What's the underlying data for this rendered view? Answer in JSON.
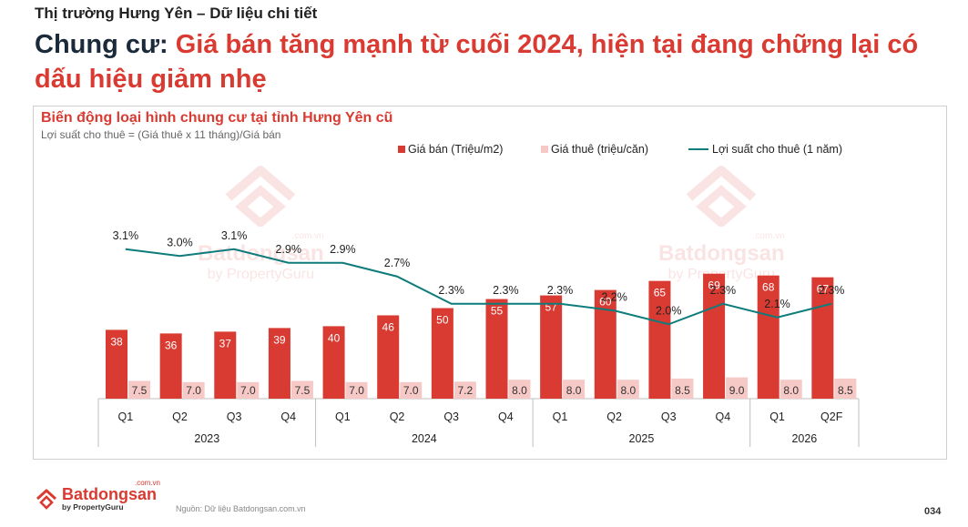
{
  "header": {
    "kicker": "Thị trường Hưng Yên – Dữ liệu chi tiết",
    "headline_lead": "Chung cư:",
    "headline_rest": " Giá bán tăng mạnh từ cuối 2024, hiện tại đang chững lại có dấu hiệu giảm nhẹ"
  },
  "colors": {
    "sale": "#d93a31",
    "rent": "#f6c9c6",
    "yield": "#0e7c7b",
    "accent": "#d93a31"
  },
  "chart_data": {
    "type": "bar",
    "title": "Biến động loại hình chung cư tại tỉnh Hưng Yên cũ",
    "subtitle": "Lợi suất cho thuê = (Giá thuê x 11 tháng)/Giá bán",
    "categories": [
      "Q1",
      "Q2",
      "Q3",
      "Q4",
      "Q1",
      "Q2",
      "Q3",
      "Q4",
      "Q1",
      "Q2",
      "Q3",
      "Q4",
      "Q1",
      "Q2F"
    ],
    "groups": [
      {
        "label": "2023",
        "count": 4
      },
      {
        "label": "2024",
        "count": 4
      },
      {
        "label": "2025",
        "count": 4
      },
      {
        "label": "2026",
        "count": 2
      }
    ],
    "series": [
      {
        "name": "Giá bán (Triệu/m2)",
        "type": "bar",
        "values": [
          38,
          36,
          37,
          39,
          40,
          46,
          50,
          55,
          57,
          60,
          65,
          69,
          68,
          67
        ],
        "labels": [
          "38",
          "36",
          "37",
          "39",
          "40",
          "46",
          "50",
          "55",
          "57",
          "60",
          "65",
          "69",
          "68",
          "67"
        ]
      },
      {
        "name": "Giá thuê (triệu/căn)",
        "type": "bar",
        "values": [
          7.5,
          7.0,
          7.0,
          7.5,
          7.0,
          7.0,
          7.2,
          8.0,
          8.0,
          8.0,
          8.5,
          9.0,
          8.0,
          8.5
        ],
        "labels": [
          "7.5",
          "7.0",
          "7.0",
          "7.5",
          "7.0",
          "7.0",
          "7.2",
          "8.0",
          "8.0",
          "8.0",
          "8.5",
          "9.0",
          "8.0",
          "8.5"
        ]
      },
      {
        "name": "Lợi suất cho thuê (1 năm)",
        "type": "line",
        "values": [
          3.1,
          3.0,
          3.1,
          2.9,
          2.9,
          2.7,
          2.3,
          2.3,
          2.3,
          2.2,
          2.0,
          2.3,
          2.1,
          2.3
        ],
        "labels": [
          "3.1%",
          "3.0%",
          "3.1%",
          "2.9%",
          "2.9%",
          "2.7%",
          "2.3%",
          "2.3%",
          "2.3%",
          "2.2%",
          "2.0%",
          "2.3%",
          "2.1%",
          "2.3%"
        ]
      }
    ],
    "legend_position": "top-right",
    "grid": false
  },
  "watermark": {
    "domain": ".com.vn",
    "name": "Batdongsan",
    "by": "by PropertyGuru"
  },
  "footer": {
    "logo_domain": ".com.vn",
    "logo_name": "Batdongsan",
    "logo_by": "by PropertyGuru",
    "source": "Nguồn: Dữ liệu Batdongsan.com.vn",
    "page_number": "034"
  }
}
